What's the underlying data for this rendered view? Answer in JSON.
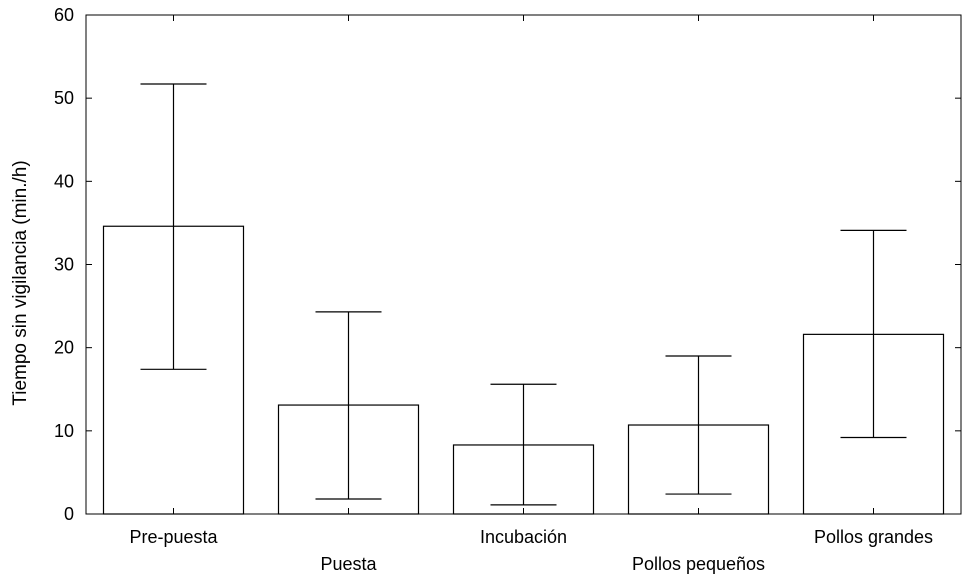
{
  "chart_data": {
    "type": "bar",
    "title": "",
    "xlabel": "",
    "ylabel": "Tiempo sin vigilancia (min./h)",
    "ylim": [
      0,
      60
    ],
    "yticks": [
      0,
      10,
      20,
      30,
      40,
      50,
      60
    ],
    "grid": false,
    "categories": [
      "Pre-puesta",
      "Puesta",
      "Incubación",
      "Pollos pequeños",
      "Pollos grandes"
    ],
    "values": [
      34.6,
      13.1,
      8.3,
      10.7,
      21.6
    ],
    "error_low": [
      17.4,
      1.8,
      1.1,
      2.4,
      9.2
    ],
    "error_high": [
      51.7,
      24.3,
      15.6,
      19.0,
      34.1
    ]
  }
}
